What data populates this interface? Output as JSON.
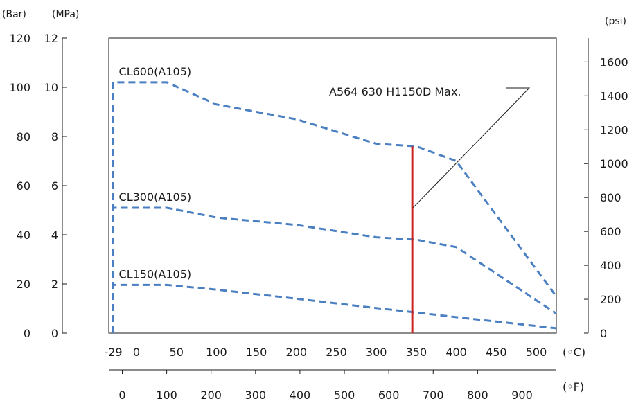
{
  "chart_data": {
    "type": "line",
    "x_units": {
      "primary": "(◦C)",
      "secondary": "(◦F)"
    },
    "y_units": {
      "bar": "(Bar)",
      "mpa": "(MPa)",
      "psi": "(psi)"
    },
    "x_ticks_c": [
      "-29",
      "0",
      "50",
      "100",
      "150",
      "200",
      "250",
      "300",
      "350",
      "400",
      "450",
      "500"
    ],
    "x_ticks_f": [
      "0",
      "100",
      "200",
      "300",
      "400",
      "500",
      "600",
      "700",
      "800",
      "900"
    ],
    "y_ticks_bar": [
      "0",
      "20",
      "40",
      "60",
      "80",
      "100",
      "120"
    ],
    "y_ticks_mpa": [
      "0",
      "2",
      "4",
      "6",
      "8",
      "10",
      "12"
    ],
    "y_ticks_psi": [
      "0",
      "200",
      "400",
      "600",
      "800",
      "1000",
      "1200",
      "1400",
      "1600"
    ],
    "xlim_c": [
      -35,
      525
    ],
    "ylim_mpa": [
      0,
      12
    ],
    "series": [
      {
        "name": "CL600(A105)",
        "color": "#4a7fc1",
        "points": [
          [
            -29,
            0
          ],
          [
            -29,
            10.2
          ],
          [
            38,
            10.2
          ],
          [
            100,
            9.3
          ],
          [
            200,
            8.7
          ],
          [
            300,
            7.7
          ],
          [
            350,
            7.6
          ],
          [
            400,
            7.0
          ],
          [
            525,
            1.5
          ]
        ]
      },
      {
        "name": "CL300(A105)",
        "color": "#4a7fc1",
        "points": [
          [
            -29,
            0
          ],
          [
            -29,
            5.1
          ],
          [
            38,
            5.1
          ],
          [
            100,
            4.7
          ],
          [
            200,
            4.4
          ],
          [
            300,
            3.9
          ],
          [
            350,
            3.8
          ],
          [
            400,
            3.5
          ],
          [
            525,
            0.8
          ]
        ]
      },
      {
        "name": "CL150(A105)",
        "color": "#4a7fc1",
        "points": [
          [
            -29,
            0
          ],
          [
            -29,
            1.96
          ],
          [
            38,
            1.96
          ],
          [
            100,
            1.77
          ],
          [
            200,
            1.4
          ],
          [
            300,
            1.02
          ],
          [
            350,
            0.84
          ],
          [
            400,
            0.65
          ],
          [
            525,
            0.2
          ]
        ]
      }
    ],
    "annotation": {
      "text": "A564 630 H1150D Max.",
      "x_c": 345,
      "y_max_mpa": 7.6,
      "color": "#cc2222"
    }
  }
}
